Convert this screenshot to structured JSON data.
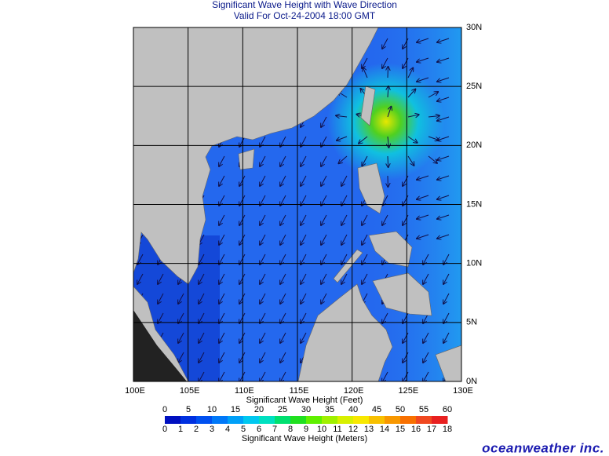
{
  "header": {
    "title": "Significant Wave Height with Wave Direction",
    "subtitle": "Valid For Oct-24-2004 18:00 GMT"
  },
  "map": {
    "lat_labels": [
      "30N",
      "25N",
      "20N",
      "15N",
      "10N",
      "5N",
      "0N"
    ],
    "lon_labels": [
      "100E",
      "105E",
      "110E",
      "115E",
      "120E",
      "125E",
      "130E"
    ]
  },
  "legend": {
    "feet_title": "Significant Wave Height (Feet)",
    "feet_ticks": [
      "0",
      "5",
      "10",
      "15",
      "20",
      "25",
      "30",
      "35",
      "40",
      "45",
      "50",
      "55",
      "60"
    ],
    "meters_ticks": [
      "0",
      "1",
      "2",
      "3",
      "4",
      "5",
      "6",
      "7",
      "8",
      "9",
      "10",
      "11",
      "12",
      "13",
      "14",
      "15",
      "16",
      "17",
      "18"
    ],
    "meters_title": "Significant Wave Height (Meters)"
  },
  "brand": "oceanweather inc."
}
